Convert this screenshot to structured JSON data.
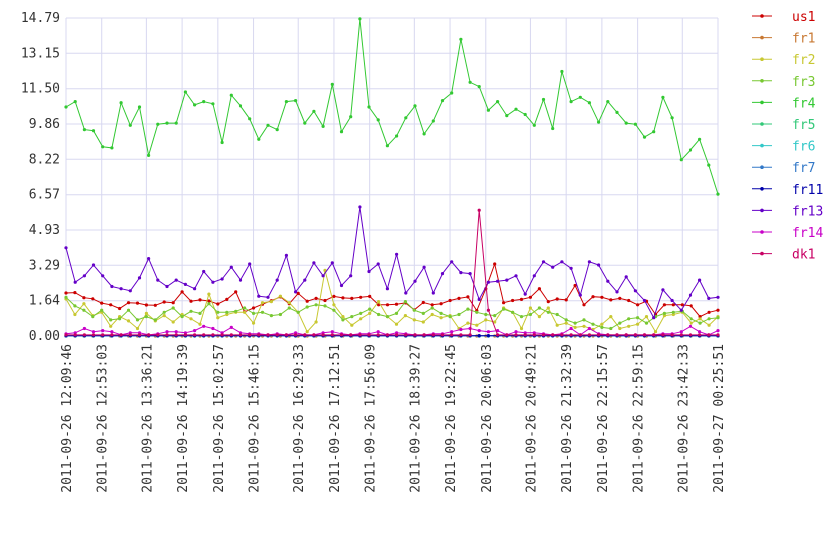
{
  "chart_data": {
    "type": "line",
    "title": "",
    "xlabel": "",
    "ylabel": "",
    "ylim": [
      0,
      14.79
    ],
    "grid": true,
    "legend_position": "right",
    "y_ticks": [
      "0.00",
      "1.64",
      "3.29",
      "4.93",
      "6.57",
      "8.22",
      "9.86",
      "11.50",
      "13.15",
      "14.79"
    ],
    "x_tick_labels": [
      "2011-09-26 12:09:46",
      "2011-09-26 12:53:03",
      "2011-09-26 13:36:21",
      "2011-09-26 14:19:39",
      "2011-09-26 15:02:57",
      "2011-09-26 15:46:15",
      "2011-09-26 16:29:33",
      "2011-09-26 17:12:51",
      "2011-09-26 17:56:09",
      "2011-09-26 18:39:27",
      "2011-09-26 19:22:45",
      "2011-09-26 20:06:03",
      "2011-09-26 20:49:21",
      "2011-09-26 21:32:39",
      "2011-09-26 22:15:57",
      "2011-09-26 22:59:15",
      "2011-09-26 23:42:33",
      "2011-09-27 00:25:51"
    ],
    "x_tick_index": [
      0,
      6,
      12,
      18,
      24,
      30,
      36,
      42,
      48,
      54,
      60,
      66,
      72,
      78,
      84,
      90,
      96,
      102
    ],
    "series": [
      {
        "name": "us1",
        "color": "#cc0000",
        "values": [
          2.0,
          2.02,
          1.78,
          1.73,
          1.53,
          1.45,
          1.28,
          1.55,
          1.53,
          1.44,
          1.43,
          1.58,
          1.55,
          2.05,
          1.62,
          1.68,
          1.63,
          1.49,
          1.7,
          2.05,
          1.12,
          1.3,
          1.48,
          1.64,
          1.82,
          1.5,
          1.98,
          1.62,
          1.75,
          1.65,
          1.84,
          1.77,
          1.75,
          1.8,
          1.84,
          1.45,
          1.45,
          1.48,
          1.54,
          1.22,
          1.56,
          1.45,
          1.5,
          1.65,
          1.75,
          1.82,
          1.18,
          2.2,
          3.35,
          1.55,
          1.65,
          1.7,
          1.8,
          2.2,
          1.6,
          1.72,
          1.68,
          2.35,
          1.45,
          1.83,
          1.8,
          1.68,
          1.75,
          1.65,
          1.45,
          1.62,
          1.0,
          1.45,
          1.45,
          1.45,
          1.4,
          0.9,
          1.1,
          1.2
        ]
      },
      {
        "name": "fr1",
        "color": "#c87832",
        "values": [
          0,
          0,
          0,
          0,
          0,
          0,
          0,
          0,
          0,
          0,
          0,
          0,
          0,
          0,
          0,
          0,
          0,
          0,
          0,
          0,
          0,
          0,
          0,
          0,
          0,
          0,
          0,
          0,
          0,
          0,
          0,
          0,
          0,
          0,
          0,
          0,
          0,
          0,
          0,
          0,
          0,
          0,
          0,
          0,
          0,
          0,
          0,
          0,
          0,
          0,
          0,
          0,
          0,
          0,
          0,
          0,
          0,
          0,
          0,
          0,
          0,
          0,
          0,
          0,
          0,
          0,
          0,
          0,
          0,
          0,
          0,
          0,
          0,
          0
        ]
      },
      {
        "name": "fr2",
        "color": "#c8c832",
        "values": [
          1.72,
          1.0,
          1.5,
          0.95,
          1.1,
          0.45,
          0.9,
          0.7,
          0.35,
          1.05,
          0.7,
          0.95,
          0.65,
          1.0,
          0.8,
          0.55,
          1.95,
          0.85,
          1.0,
          1.1,
          1.1,
          0.6,
          1.55,
          1.6,
          1.85,
          1.55,
          1.1,
          0.2,
          0.65,
          3.05,
          1.45,
          0.9,
          0.5,
          0.8,
          1.05,
          1.6,
          0.9,
          0.55,
          0.95,
          0.75,
          0.65,
          1.0,
          0.85,
          0.95,
          0.35,
          0.6,
          0.5,
          0.75,
          0.65,
          1.3,
          1.1,
          0.35,
          1.3,
          0.9,
          1.3,
          0.5,
          0.6,
          0.4,
          0.45,
          0.3,
          0.55,
          0.9,
          0.35,
          0.45,
          0.55,
          0.9,
          0.2,
          0.95,
          1.0,
          1.1,
          0.6,
          0.8,
          0.5,
          0.9
        ]
      },
      {
        "name": "fr3",
        "color": "#78c832",
        "values": [
          1.8,
          1.4,
          1.2,
          0.9,
          1.2,
          0.75,
          0.8,
          1.2,
          0.75,
          0.9,
          0.75,
          1.1,
          1.3,
          0.9,
          1.15,
          1.05,
          1.5,
          1.1,
          1.1,
          1.15,
          1.3,
          1.05,
          1.1,
          0.95,
          1.0,
          1.3,
          1.1,
          1.35,
          1.45,
          1.4,
          1.2,
          0.75,
          0.9,
          1.05,
          1.25,
          1.0,
          0.9,
          1.05,
          1.6,
          1.2,
          1.05,
          1.3,
          1.05,
          0.9,
          1.0,
          1.25,
          1.1,
          1.0,
          0.95,
          1.25,
          1.1,
          0.9,
          1.0,
          1.3,
          1.1,
          1.0,
          0.75,
          0.6,
          0.75,
          0.55,
          0.4,
          0.35,
          0.6,
          0.8,
          0.85,
          0.6,
          0.9,
          1.05,
          1.1,
          1.15,
          0.8,
          0.6,
          0.8,
          0.85
        ]
      },
      {
        "name": "fr4",
        "color": "#32c832",
        "values": [
          10.65,
          10.9,
          9.6,
          9.55,
          8.8,
          8.75,
          10.85,
          9.8,
          10.65,
          8.4,
          9.85,
          9.9,
          9.9,
          11.35,
          10.75,
          10.9,
          10.8,
          9.0,
          11.2,
          10.7,
          10.1,
          9.15,
          9.8,
          9.6,
          10.9,
          10.95,
          9.9,
          10.45,
          9.75,
          11.7,
          9.5,
          10.2,
          14.75,
          10.65,
          10.05,
          8.85,
          9.3,
          10.15,
          10.7,
          9.4,
          10.0,
          10.95,
          11.3,
          13.8,
          11.8,
          11.6,
          10.5,
          10.9,
          10.25,
          10.55,
          10.3,
          9.8,
          11.0,
          9.65,
          12.3,
          10.9,
          11.1,
          10.85,
          9.95,
          10.9,
          10.4,
          9.9,
          9.85,
          9.25,
          9.5,
          11.1,
          10.15,
          8.2,
          8.65,
          9.15,
          7.95,
          6.6
        ]
      },
      {
        "name": "fr5",
        "color": "#32c878",
        "values": [
          0,
          0,
          0,
          0,
          0,
          0,
          0,
          0,
          0,
          0,
          0,
          0,
          0,
          0,
          0,
          0,
          0,
          0,
          0,
          0,
          0,
          0,
          0,
          0,
          0,
          0,
          0,
          0,
          0,
          0,
          0,
          0,
          0,
          0,
          0,
          0,
          0,
          0,
          0,
          0,
          0,
          0,
          0,
          0,
          0,
          0,
          0,
          0,
          0,
          0,
          0,
          0,
          0,
          0,
          0,
          0,
          0,
          0,
          0,
          0,
          0,
          0,
          0,
          0,
          0,
          0,
          0,
          0,
          0,
          0,
          0,
          0
        ]
      },
      {
        "name": "fr6",
        "color": "#32c8c8",
        "values": [
          0,
          0,
          0,
          0,
          0,
          0,
          0,
          0,
          0,
          0,
          0,
          0,
          0,
          0,
          0,
          0,
          0,
          0,
          0,
          0,
          0,
          0,
          0,
          0,
          0,
          0,
          0,
          0,
          0,
          0,
          0,
          0,
          0,
          0,
          0,
          0,
          0,
          0,
          0,
          0,
          0,
          0,
          0,
          0,
          0,
          0,
          0,
          0,
          0,
          0,
          0,
          0,
          0,
          0,
          0,
          0,
          0,
          0,
          0,
          0,
          0,
          0,
          0,
          0,
          0,
          0,
          0,
          0,
          0,
          0,
          0,
          0
        ]
      },
      {
        "name": "fr7",
        "color": "#3278c8",
        "values": [
          0,
          0,
          0,
          0,
          0,
          0,
          0,
          0,
          0,
          0,
          0,
          0,
          0,
          0,
          0,
          0,
          0,
          0,
          0,
          0,
          0,
          0,
          0,
          0,
          0,
          0,
          0,
          0,
          0,
          0,
          0,
          0,
          0,
          0,
          0,
          0,
          0,
          0,
          0,
          0,
          0,
          0,
          0,
          0,
          0,
          0,
          0,
          0,
          0,
          0,
          0,
          0,
          0,
          0,
          0,
          0,
          0,
          0,
          0,
          0,
          0,
          0,
          0,
          0,
          0,
          0,
          0,
          0,
          0,
          0,
          0,
          0
        ]
      },
      {
        "name": "fr11",
        "color": "#0000aa",
        "values": [
          0.02,
          0.02,
          0.02,
          0.02,
          0.02,
          0.02,
          0.02,
          0.02,
          0.02,
          0.02,
          0.02,
          0.02,
          0.02,
          0.02,
          0.02,
          0.02,
          0.02,
          0.02,
          0.02,
          0.02,
          0.02,
          0.02,
          0.02,
          0.02,
          0.02,
          0.02,
          0.02,
          0.02,
          0.02,
          0.02,
          0.02,
          0.02,
          0.02,
          0.02,
          0.02,
          0.02,
          0.02,
          0.02,
          0.02,
          0.02,
          0.02,
          0.02,
          0.02,
          0.02,
          0.02,
          0.02,
          0.02,
          0.02,
          0.02,
          0.02,
          0.02,
          0.02,
          0.02,
          0.02,
          0.02,
          0.02,
          0.02,
          0.02,
          0.02,
          0.02,
          0.02,
          0.02,
          0.02,
          0.02,
          0.02,
          0.02,
          0.02,
          0.02,
          0.02,
          0.02,
          0.02,
          0.02
        ]
      },
      {
        "name": "fr13",
        "color": "#6400c8",
        "values": [
          4.1,
          2.5,
          2.8,
          3.3,
          2.8,
          2.3,
          2.2,
          2.1,
          2.7,
          3.6,
          2.6,
          2.3,
          2.6,
          2.4,
          2.2,
          3.0,
          2.5,
          2.65,
          3.2,
          2.6,
          3.35,
          1.85,
          1.8,
          2.6,
          3.75,
          2.05,
          2.6,
          3.4,
          2.8,
          3.4,
          2.35,
          2.8,
          6.0,
          3.0,
          3.35,
          2.2,
          3.8,
          2.0,
          2.55,
          3.2,
          2.0,
          2.9,
          3.45,
          2.95,
          2.9,
          1.7,
          2.5,
          2.55,
          2.6,
          2.8,
          1.95,
          2.8,
          3.45,
          3.2,
          3.45,
          3.15,
          1.9,
          3.45,
          3.3,
          2.55,
          2.05,
          2.75,
          2.1,
          1.65,
          0.85,
          2.15,
          1.65,
          1.2,
          1.9,
          2.6,
          1.75,
          1.8
        ]
      },
      {
        "name": "fr14",
        "color": "#c800c8",
        "values": [
          0.1,
          0.15,
          0.35,
          0.2,
          0.25,
          0.2,
          0.05,
          0.15,
          0.15,
          0.05,
          0.1,
          0.2,
          0.2,
          0.15,
          0.25,
          0.45,
          0.35,
          0.15,
          0.4,
          0.15,
          0.1,
          0.1,
          0.05,
          0.1,
          0.05,
          0.15,
          0.05,
          0.05,
          0.15,
          0.2,
          0.1,
          0.05,
          0.1,
          0.1,
          0.2,
          0.05,
          0.15,
          0.1,
          0.05,
          0.05,
          0.1,
          0.1,
          0.2,
          0.3,
          0.35,
          0.25,
          0.2,
          0.25,
          0.05,
          0.2,
          0.15,
          0.15,
          0.1,
          0.05,
          0.1,
          0.35,
          0.05,
          0.35,
          0.1,
          0.05,
          0.05,
          0.05,
          0.05,
          0.05,
          0.05,
          0.1,
          0.1,
          0.2,
          0.45,
          0.2,
          0.05,
          0.25
        ]
      },
      {
        "name": "dk1",
        "color": "#c80064",
        "values": [
          0.05,
          0.05,
          0.05,
          0.05,
          0.05,
          0.05,
          0.05,
          0.05,
          0.05,
          0.05,
          0.05,
          0.05,
          0.05,
          0.05,
          0.05,
          0.05,
          0.05,
          0.05,
          0.05,
          0.05,
          0.05,
          0.05,
          0.05,
          0.05,
          0.05,
          0.05,
          0.05,
          0.05,
          0.05,
          0.05,
          0.05,
          0.05,
          0.05,
          0.05,
          0.05,
          0.05,
          0.05,
          0.05,
          0.05,
          0.05,
          0.05,
          0.05,
          0.05,
          0.05,
          0.05,
          5.85,
          1.2,
          0.05,
          0.05,
          0.05,
          0.05,
          0.05,
          0.05,
          0.05,
          0.05,
          0.05,
          0.05,
          0.05,
          0.05,
          0.05,
          0.05,
          0.05,
          0.05,
          0.05,
          0.05,
          0.05,
          0.05,
          0.05,
          0.05,
          0.05,
          0.05,
          0.05
        ]
      }
    ]
  }
}
